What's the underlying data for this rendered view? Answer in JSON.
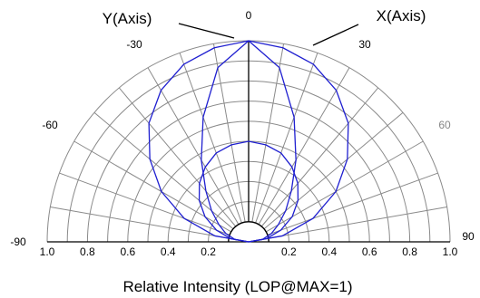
{
  "chart_data": {
    "type": "polar",
    "subtype": "semi-polar radiation pattern",
    "angle_range": [
      -90,
      90
    ],
    "angle_ticks": [
      {
        "value": 0,
        "label": "0",
        "color": "#000000"
      },
      {
        "value": -30,
        "label": "-30",
        "color": "#000000"
      },
      {
        "value": 30,
        "label": "30",
        "color": "#000000"
      },
      {
        "value": -60,
        "label": "-60",
        "color": "#000000"
      },
      {
        "value": 60,
        "label": "60",
        "color": "#888888"
      },
      {
        "value": -90,
        "label": "-90",
        "color": "#000000"
      },
      {
        "value": 90,
        "label": "90",
        "color": "#000000"
      }
    ],
    "radial_ticks": [
      "1.0",
      "0.8",
      "0.6",
      "0.4",
      "0.2",
      "",
      "0.2",
      "0.4",
      "0.6",
      "0.8",
      "1.0"
    ],
    "radial_range": [
      0,
      1
    ],
    "grid": true,
    "grid_angle_step_deg": 10,
    "grid_radius_step": 0.1,
    "xlabel": "Relative Intensity (LOP@MAX=1)",
    "series": [
      {
        "name": "X(Axis)",
        "color": "#1f1fd0",
        "angles": [
          -90,
          -80,
          -70,
          -60,
          -50,
          -40,
          -30,
          -20,
          -10,
          0,
          10,
          20,
          30,
          40,
          50,
          60,
          70,
          80,
          90
        ],
        "values": [
          0.0,
          0.17,
          0.34,
          0.5,
          0.64,
          0.77,
          0.87,
          0.94,
          0.98,
          1.0,
          0.98,
          0.94,
          0.87,
          0.77,
          0.64,
          0.5,
          0.34,
          0.17,
          0.0
        ]
      },
      {
        "name": "Y(Axis)",
        "color": "#1f1fd0",
        "angles": [
          -90,
          -80,
          -70,
          -60,
          -50,
          -40,
          -30,
          -20,
          -10,
          0,
          10,
          20,
          30,
          40,
          50,
          60,
          70,
          80,
          90
        ],
        "values": [
          0.0,
          0.07,
          0.12,
          0.17,
          0.24,
          0.33,
          0.47,
          0.66,
          0.88,
          1.0,
          0.88,
          0.66,
          0.47,
          0.33,
          0.24,
          0.17,
          0.12,
          0.07,
          0.0
        ]
      }
    ],
    "reference_curve": {
      "color": "#1f1fd0",
      "angles": [
        -90,
        -80,
        -70,
        -60,
        -50,
        -40,
        -30,
        -20,
        -10,
        0,
        10,
        20,
        30,
        40,
        50,
        60,
        70,
        80,
        90
      ],
      "values": [
        0.0,
        0.09,
        0.17,
        0.25,
        0.32,
        0.38,
        0.43,
        0.47,
        0.49,
        0.5,
        0.49,
        0.47,
        0.43,
        0.38,
        0.32,
        0.25,
        0.17,
        0.09,
        0.0
      ]
    },
    "annotations": [
      {
        "text": "Y(Axis)",
        "points_to": "Y(Axis)"
      },
      {
        "text": "X(Axis)",
        "points_to": "X(Axis)"
      }
    ]
  }
}
